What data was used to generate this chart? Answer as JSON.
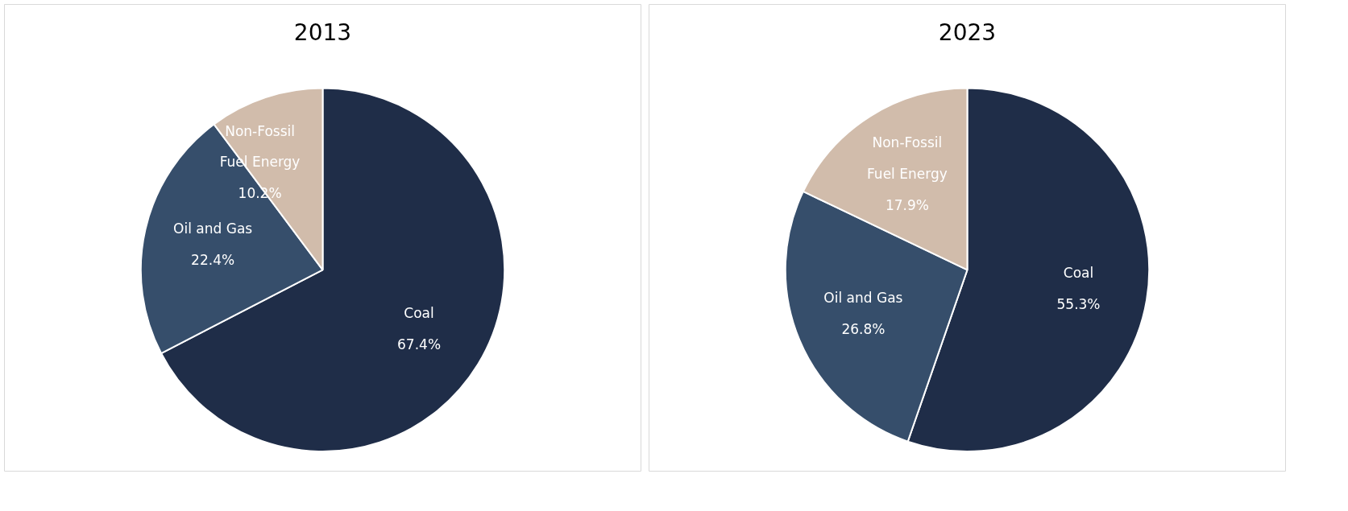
{
  "chart_data": [
    {
      "type": "pie",
      "title": "2013",
      "categories": [
        "Coal",
        "Oil and Gas",
        "Non-Fossil Fuel Energy"
      ],
      "values": [
        67.4,
        22.4,
        10.2
      ],
      "value_labels": [
        "67.4%",
        "22.4%",
        "10.2%"
      ],
      "colors": [
        "#1f2d48",
        "#364e6b",
        "#d1bcab"
      ],
      "legend": false
    },
    {
      "type": "pie",
      "title": "2023",
      "categories": [
        "Coal",
        "Oil and Gas",
        "Non-Fossil Fuel Energy"
      ],
      "values": [
        55.3,
        26.8,
        17.9
      ],
      "value_labels": [
        "55.3%",
        "26.8%",
        "17.9%"
      ],
      "colors": [
        "#1f2d48",
        "#364e6b",
        "#d1bcab"
      ],
      "legend": false
    }
  ]
}
